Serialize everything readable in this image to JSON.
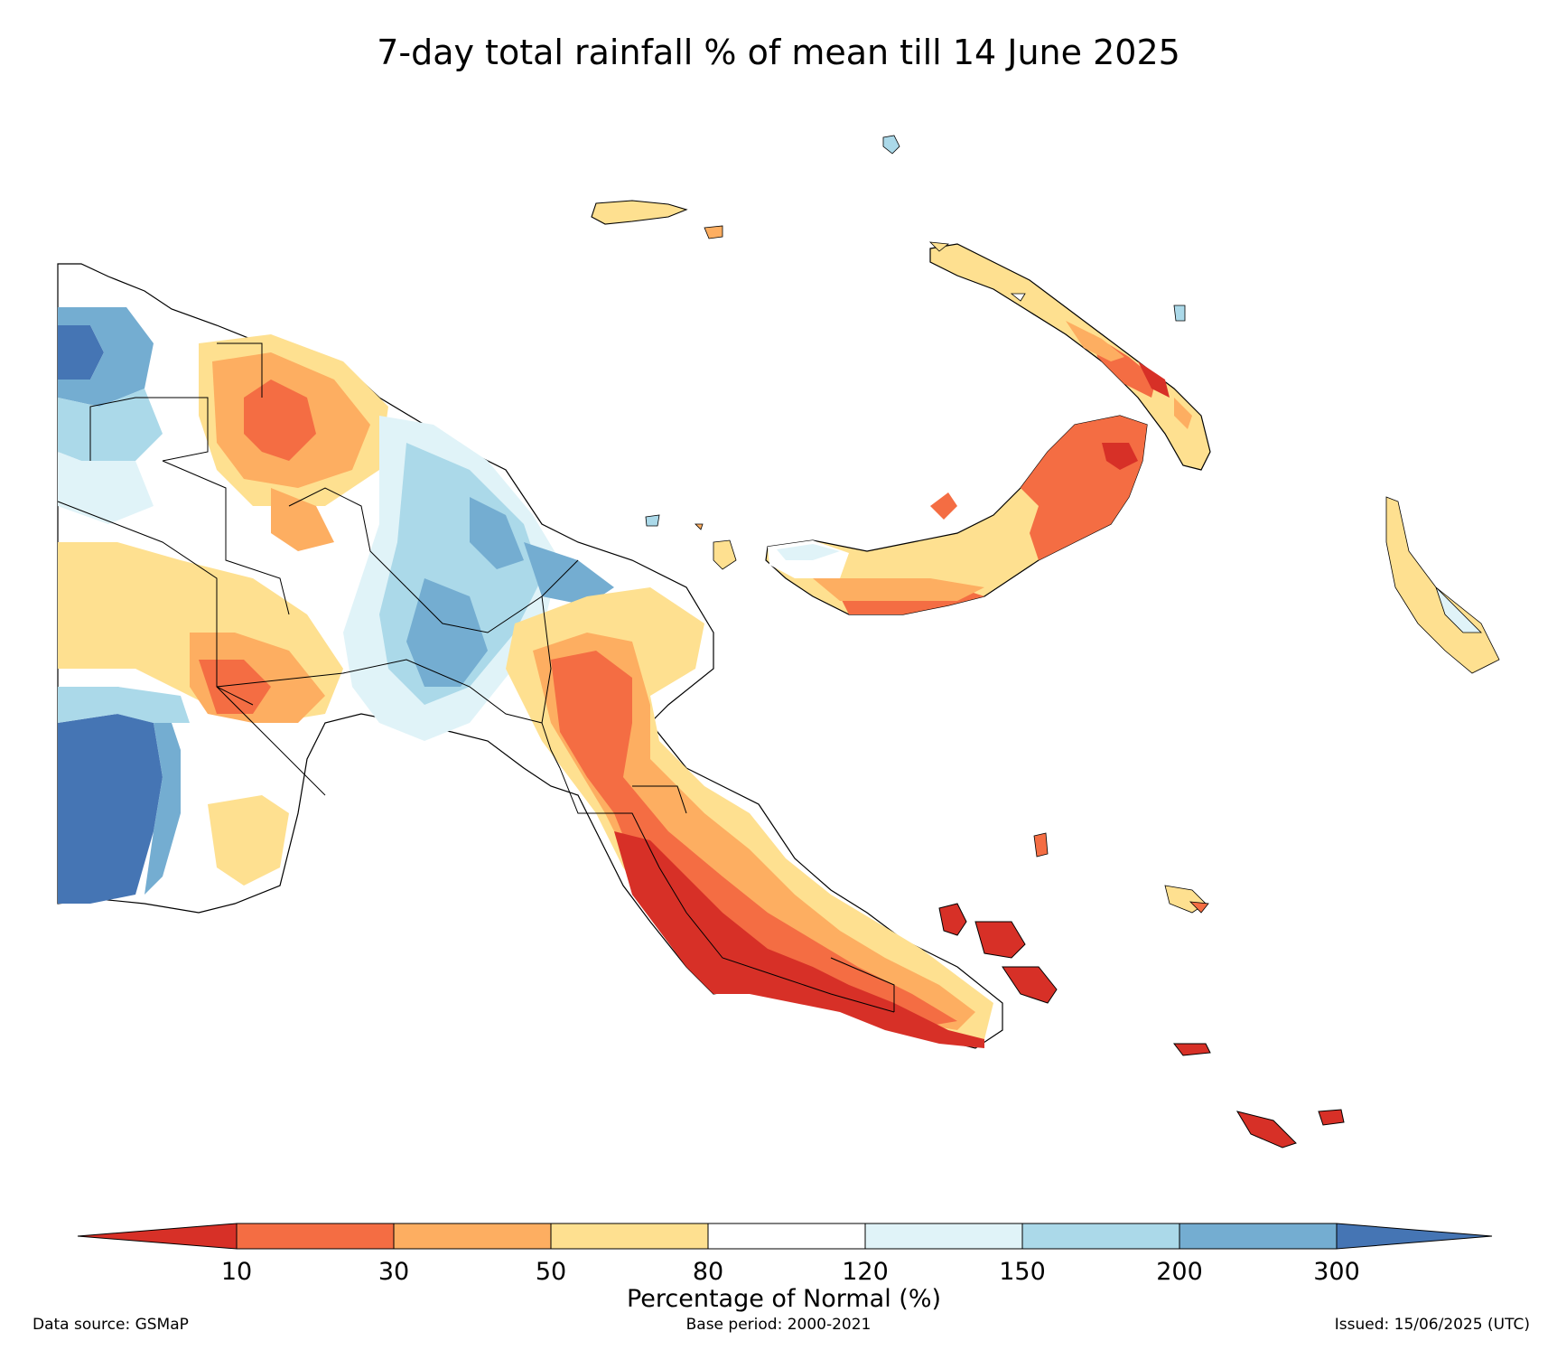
{
  "title": "7-day total rainfall % of mean till 14 June 2025",
  "colors": {
    "lt10": "#d73027",
    "c10_30": "#f46d43",
    "c30_50": "#fdae61",
    "c50_80": "#fee090",
    "c80_120": "#ffffff",
    "c120_150": "#e0f3f8",
    "c150_200": "#abd9e9",
    "c200_300": "#74add1",
    "gt300": "#4575b4"
  },
  "legend": {
    "title": "Percentage of Normal (%)",
    "ticks": [
      "10",
      "30",
      "50",
      "80",
      "120",
      "150",
      "200",
      "300"
    ],
    "bins": [
      {
        "range": "<10",
        "color": "#d73027"
      },
      {
        "range": "10-30",
        "color": "#f46d43"
      },
      {
        "range": "30-50",
        "color": "#fdae61"
      },
      {
        "range": "50-80",
        "color": "#fee090"
      },
      {
        "range": "80-120",
        "color": "#ffffff"
      },
      {
        "range": "120-150",
        "color": "#e0f3f8"
      },
      {
        "range": "150-200",
        "color": "#abd9e9"
      },
      {
        "range": "200-300",
        "color": "#74add1"
      },
      {
        "range": ">300",
        "color": "#4575b4"
      }
    ]
  },
  "footer": {
    "source": "Data source: GSMaP",
    "base_period": "Base period: 2000-2021",
    "issued": "Issued: 15/06/2025 (UTC)"
  }
}
